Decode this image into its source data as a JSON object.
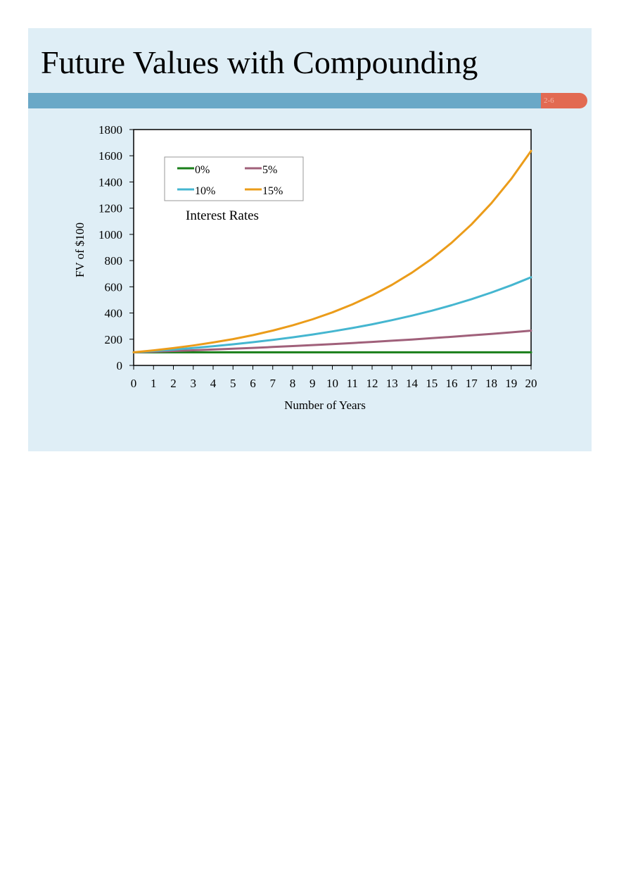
{
  "slide": {
    "title": "Future Values with Compounding",
    "slide_number": "2-6"
  },
  "colors": {
    "slide_background": "#dfeef6",
    "title_bar": "#6aa8c7",
    "slide_number_badge": "#e26a52"
  },
  "chart_data": {
    "type": "line",
    "title": "",
    "xlabel": "Number of Years",
    "ylabel": "FV of $100",
    "x": [
      0,
      1,
      2,
      3,
      4,
      5,
      6,
      7,
      8,
      9,
      10,
      11,
      12,
      13,
      14,
      15,
      16,
      17,
      18,
      19,
      20
    ],
    "xlim": [
      0,
      20
    ],
    "ylim": [
      0,
      1800
    ],
    "yticks": [
      0,
      200,
      400,
      600,
      800,
      1000,
      1200,
      1400,
      1600,
      1800
    ],
    "grid": false,
    "legend": {
      "title": "Interest Rates",
      "placement": "top-left"
    },
    "series": [
      {
        "name": "0%",
        "color": "#1a7f1a",
        "values": [
          100,
          100,
          100,
          100,
          100,
          100,
          100,
          100,
          100,
          100,
          100,
          100,
          100,
          100,
          100,
          100,
          100,
          100,
          100,
          100,
          100
        ]
      },
      {
        "name": "5%",
        "color": "#a0607a",
        "values": [
          100,
          105,
          110.25,
          115.76,
          121.55,
          127.63,
          134.01,
          140.71,
          147.75,
          155.13,
          162.89,
          171.03,
          179.59,
          188.56,
          197.99,
          207.89,
          218.29,
          229.2,
          240.66,
          252.7,
          265.33
        ]
      },
      {
        "name": "10%",
        "color": "#45b6d0",
        "values": [
          100,
          110,
          121,
          133.1,
          146.41,
          161.05,
          177.16,
          194.87,
          214.36,
          235.79,
          259.37,
          285.31,
          313.84,
          345.23,
          379.75,
          417.72,
          459.5,
          505.45,
          555.99,
          611.59,
          672.75
        ]
      },
      {
        "name": "15%",
        "color": "#eb9c1a",
        "values": [
          100,
          115,
          132.25,
          152.09,
          174.9,
          201.14,
          231.31,
          266.0,
          305.9,
          351.79,
          404.56,
          465.24,
          535.03,
          615.28,
          707.57,
          813.71,
          935.76,
          1076.13,
          1237.55,
          1423.18,
          1636.65
        ]
      }
    ]
  }
}
